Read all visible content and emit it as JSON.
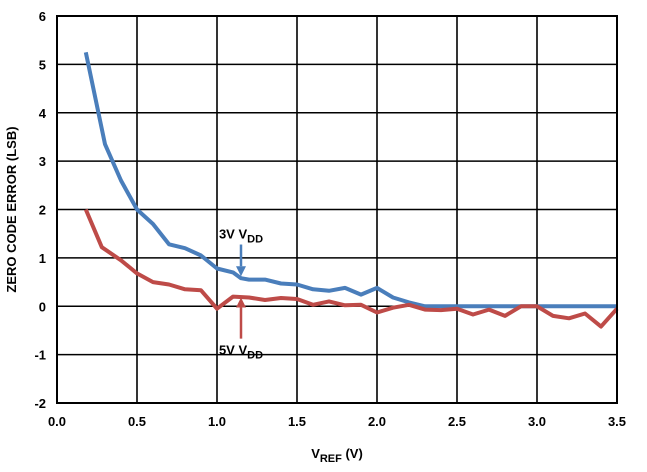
{
  "chart_data": {
    "type": "line",
    "title": "",
    "xlabel": "V",
    "xlabel_sub": "REF",
    "xlabel_suffix": " (V)",
    "ylabel": "ZERO CODE ERROR (LSB)",
    "xlim": [
      0,
      3.5
    ],
    "ylim": [
      -2,
      6
    ],
    "x_ticks": [
      "0.0",
      "0.5",
      "1.0",
      "1.5",
      "2.0",
      "2.5",
      "3.0",
      "3.5"
    ],
    "y_ticks": [
      "-2",
      "-1",
      "0",
      "1",
      "2",
      "3",
      "4",
      "5",
      "6"
    ],
    "grid": true,
    "series": [
      {
        "name": "3V VDD",
        "color": "#4a7ebb",
        "points": [
          [
            0.18,
            5.25
          ],
          [
            0.3,
            3.35
          ],
          [
            0.4,
            2.6
          ],
          [
            0.5,
            2.0
          ],
          [
            0.6,
            1.7
          ],
          [
            0.7,
            1.28
          ],
          [
            0.8,
            1.2
          ],
          [
            0.9,
            1.05
          ],
          [
            1.0,
            0.78
          ],
          [
            1.1,
            0.7
          ],
          [
            1.15,
            0.58
          ],
          [
            1.2,
            0.55
          ],
          [
            1.3,
            0.55
          ],
          [
            1.4,
            0.47
          ],
          [
            1.5,
            0.45
          ],
          [
            1.6,
            0.35
          ],
          [
            1.7,
            0.32
          ],
          [
            1.8,
            0.38
          ],
          [
            1.9,
            0.24
          ],
          [
            2.0,
            0.38
          ],
          [
            2.1,
            0.18
          ],
          [
            2.2,
            0.08
          ],
          [
            2.3,
            0.0
          ],
          [
            2.5,
            0.0
          ],
          [
            3.0,
            0.0
          ],
          [
            3.5,
            0.0
          ]
        ]
      },
      {
        "name": "5V VDD",
        "color": "#be4b48",
        "points": [
          [
            0.18,
            2.0
          ],
          [
            0.28,
            1.22
          ],
          [
            0.4,
            0.95
          ],
          [
            0.5,
            0.68
          ],
          [
            0.6,
            0.5
          ],
          [
            0.7,
            0.45
          ],
          [
            0.8,
            0.35
          ],
          [
            0.9,
            0.33
          ],
          [
            1.0,
            -0.05
          ],
          [
            1.1,
            0.2
          ],
          [
            1.2,
            0.18
          ],
          [
            1.3,
            0.13
          ],
          [
            1.4,
            0.17
          ],
          [
            1.5,
            0.15
          ],
          [
            1.6,
            0.03
          ],
          [
            1.7,
            0.1
          ],
          [
            1.8,
            0.02
          ],
          [
            1.9,
            0.03
          ],
          [
            2.0,
            -0.13
          ],
          [
            2.1,
            -0.03
          ],
          [
            2.2,
            0.03
          ],
          [
            2.3,
            -0.07
          ],
          [
            2.4,
            -0.08
          ],
          [
            2.5,
            -0.05
          ],
          [
            2.6,
            -0.17
          ],
          [
            2.7,
            -0.07
          ],
          [
            2.8,
            -0.2
          ],
          [
            2.9,
            0.0
          ],
          [
            3.0,
            0.0
          ],
          [
            3.1,
            -0.2
          ],
          [
            3.2,
            -0.25
          ],
          [
            3.3,
            -0.15
          ],
          [
            3.4,
            -0.42
          ],
          [
            3.5,
            -0.05
          ]
        ]
      }
    ],
    "annotations": [
      {
        "main": "3V V",
        "sub": "DD",
        "x": 1.15,
        "y": 1.4,
        "arrow_to": [
          1.15,
          0.62
        ],
        "color": "#4a7ebb"
      },
      {
        "main": "5V V",
        "sub": "DD",
        "x": 1.15,
        "y": -1.0,
        "arrow_to": [
          1.15,
          0.18
        ],
        "color": "#be4b48"
      }
    ]
  }
}
